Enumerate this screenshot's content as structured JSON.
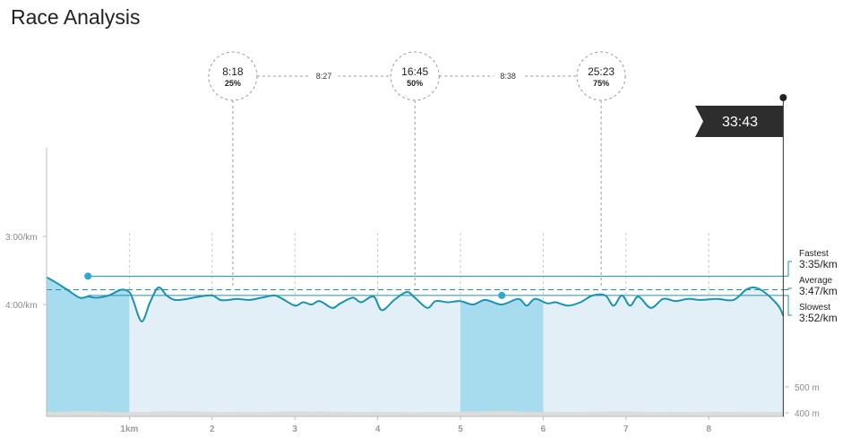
{
  "page": {
    "title": "Race Analysis"
  },
  "chart_data": {
    "type": "line",
    "x_unit": "km",
    "x_ticks": [
      {
        "value": 1,
        "label": "1km"
      },
      {
        "value": 2,
        "label": "2"
      },
      {
        "value": 3,
        "label": "3"
      },
      {
        "value": 4,
        "label": "4"
      },
      {
        "value": 5,
        "label": "5"
      },
      {
        "value": 6,
        "label": "6"
      },
      {
        "value": 7,
        "label": "7"
      },
      {
        "value": 8,
        "label": "8"
      }
    ],
    "y_axis": {
      "reversed": true,
      "min_pace_sec": 210,
      "max_pace_sec": 270
    },
    "y_ticks": [
      {
        "value": 180,
        "label": "3:00/km"
      },
      {
        "value": 240,
        "label": "4:00/km"
      }
    ],
    "elevation_ticks": [
      {
        "value": 500,
        "label": "500 m"
      },
      {
        "value": 400,
        "label": "400 m"
      }
    ],
    "pace_series": {
      "x": [
        0,
        0.1,
        0.25,
        0.4,
        0.5,
        0.6,
        0.75,
        0.9,
        1.0,
        1.05,
        1.15,
        1.25,
        1.35,
        1.45,
        1.55,
        1.7,
        1.85,
        2.0,
        2.1,
        2.2,
        2.3,
        2.45,
        2.6,
        2.75,
        2.85,
        3.0,
        3.1,
        3.2,
        3.3,
        3.45,
        3.55,
        3.7,
        3.8,
        3.95,
        4.05,
        4.2,
        4.35,
        4.45,
        4.6,
        4.7,
        4.85,
        5.0,
        5.15,
        5.3,
        5.5,
        5.7,
        5.8,
        5.9,
        6.05,
        6.15,
        6.3,
        6.45,
        6.6,
        6.75,
        6.85,
        6.95,
        7.05,
        7.15,
        7.3,
        7.45,
        7.6,
        7.75,
        7.9,
        8.1,
        8.3,
        8.45,
        8.55,
        8.65,
        8.75,
        8.85,
        8.9
      ],
      "pace_sec": [
        216,
        220,
        227,
        234,
        233,
        234,
        232,
        227,
        229,
        237,
        255,
        238,
        225,
        232,
        236,
        235,
        233,
        232,
        236,
        236,
        235,
        236,
        234,
        232,
        235,
        241,
        238,
        240,
        237,
        243,
        239,
        234,
        238,
        233,
        245,
        236,
        229,
        234,
        243,
        237,
        238,
        237,
        240,
        236,
        240,
        235,
        241,
        235,
        239,
        238,
        241,
        238,
        232,
        232,
        241,
        232,
        241,
        233,
        243,
        235,
        237,
        235,
        236,
        235,
        236,
        227,
        225,
        228,
        234,
        242,
        250
      ]
    },
    "elevation_series": {
      "x": [
        0,
        0.5,
        1.0,
        1.5,
        2.0,
        2.5,
        3.0,
        3.5,
        4.0,
        4.5,
        5.0,
        5.5,
        6.0,
        6.5,
        7.0,
        7.5,
        8.0,
        8.5,
        8.9
      ],
      "elev_m": [
        400,
        402,
        399,
        403,
        401,
        400,
        402,
        401,
        400,
        399,
        401,
        403,
        400,
        401,
        402,
        400,
        401,
        400,
        401
      ]
    },
    "highlighted_segments": [
      {
        "from": 0,
        "to": 1
      },
      {
        "from": 5,
        "to": 6
      }
    ],
    "pace_lines": [
      {
        "name": "Fastest",
        "value_label": "3:35/km",
        "pace_sec": 215,
        "style": "solid"
      },
      {
        "name": "Average",
        "value_label": "3:47/km",
        "pace_sec": 227,
        "style": "dashed"
      },
      {
        "name": "Slowest",
        "value_label": "3:52/km",
        "pace_sec": 232,
        "style": "solid"
      }
    ],
    "markers": [
      {
        "x": 0.5,
        "pace_sec": 215,
        "kind": "fastest"
      },
      {
        "x": 5.5,
        "pace_sec": 232,
        "kind": "slowest"
      }
    ],
    "splits": [
      {
        "x": 2.25,
        "time": "8:18",
        "percent": "25%"
      },
      {
        "x": 4.45,
        "time": "16:45",
        "percent": "50%"
      },
      {
        "x": 6.7,
        "time": "25:23",
        "percent": "75%"
      }
    ],
    "split_gaps": [
      "8:27",
      "8:38"
    ],
    "finish": {
      "x": 8.9,
      "time": "33:43"
    },
    "colors": {
      "line": "#1a93b3",
      "fill_light": "#e3eff7",
      "fill_highlight": "#a7dcee",
      "elevation": "#dcdcdc",
      "finish_flag": "#2d2d2d"
    }
  }
}
